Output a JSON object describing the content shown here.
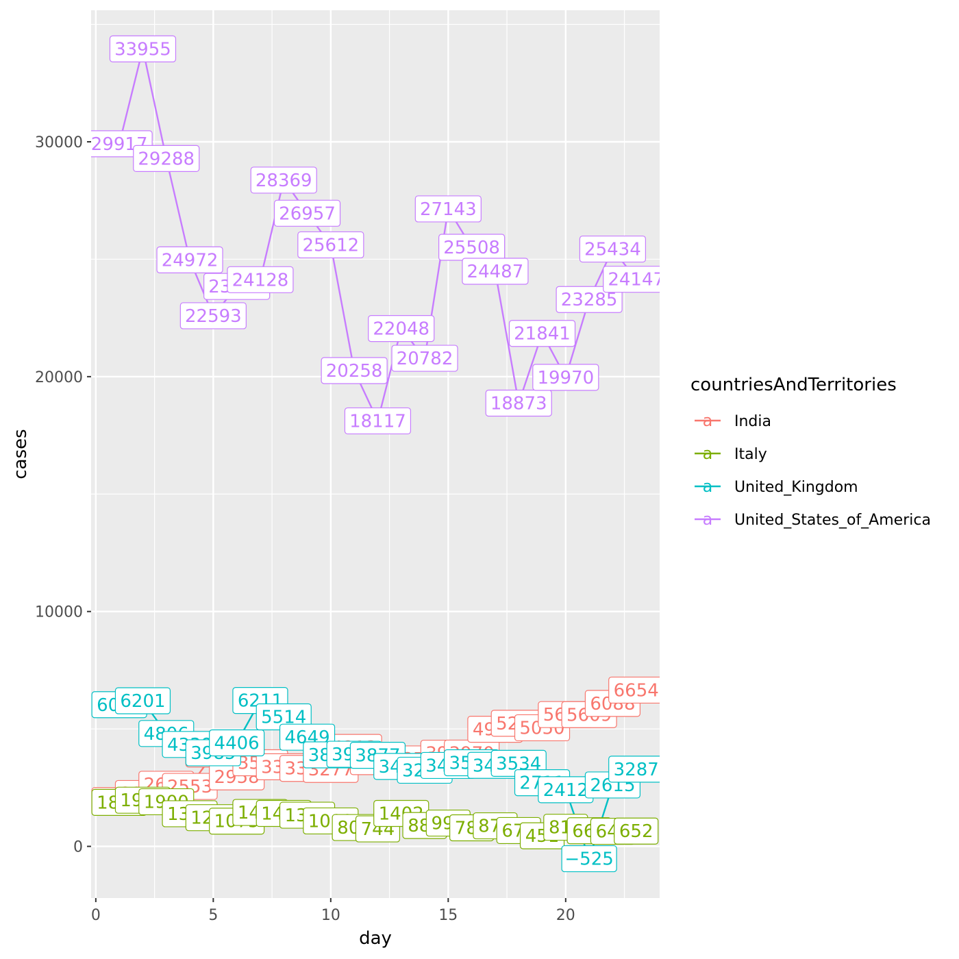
{
  "chart_data": {
    "type": "line",
    "title": "",
    "xlabel": "day",
    "ylabel": "cases",
    "xlim": [
      -0.2,
      24
    ],
    "ylim": [
      -2200,
      35600
    ],
    "x_ticks": [
      0,
      5,
      10,
      15,
      20
    ],
    "x_tick_labels": [
      "0",
      "5",
      "10",
      "15",
      "20"
    ],
    "y_ticks": [
      0,
      10000,
      20000,
      30000
    ],
    "y_tick_labels": [
      "0",
      "10000",
      "20000",
      "30000"
    ],
    "grid": true,
    "legend": {
      "title": "countriesAndTerritories",
      "position": "right",
      "key_glyph": "a"
    },
    "x": [
      1,
      2,
      3,
      4,
      5,
      6,
      7,
      8,
      9,
      10,
      11,
      12,
      13,
      14,
      15,
      16,
      17,
      18,
      19,
      20,
      21,
      22,
      23
    ],
    "series": [
      {
        "name": "India",
        "color": "#F8766D",
        "values": [
          1950,
          2250,
          2644,
          2553,
          3932,
          2958,
          3561,
          3390,
          3320,
          3277,
          4213,
          3607,
          3525,
          3722,
          3967,
          3970,
          4987,
          5242,
          5050,
          5611,
          5609,
          6088,
          6654
        ]
      },
      {
        "name": "Italy",
        "color": "#7CAE00",
        "values": [
          1872,
          1965,
          1900,
          1389,
          1221,
          1075,
          1444,
          1401,
          1327,
          1083,
          802,
          744,
          1402,
          888,
          992,
          789,
          875,
          675,
          451,
          813,
          665,
          642,
          652
        ]
      },
      {
        "name": "United_Kingdom",
        "color": "#00BFC4",
        "values": [
          6032,
          6201,
          4806,
          4339,
          3985,
          4406,
          6211,
          5514,
          4649,
          3896,
          3923,
          3877,
          3403,
          3242,
          3446,
          3560,
          3450,
          3534,
          2711,
          2412,
          -525,
          2615,
          3287
        ]
      },
      {
        "name": "United_States_of_America",
        "color": "#C77CFF",
        "values": [
          29917,
          33955,
          29288,
          24972,
          22593,
          23841,
          24128,
          28369,
          26957,
          25612,
          20258,
          18117,
          22048,
          20782,
          27143,
          25508,
          24487,
          18873,
          21841,
          19970,
          23285,
          25434,
          24147
        ]
      }
    ]
  }
}
